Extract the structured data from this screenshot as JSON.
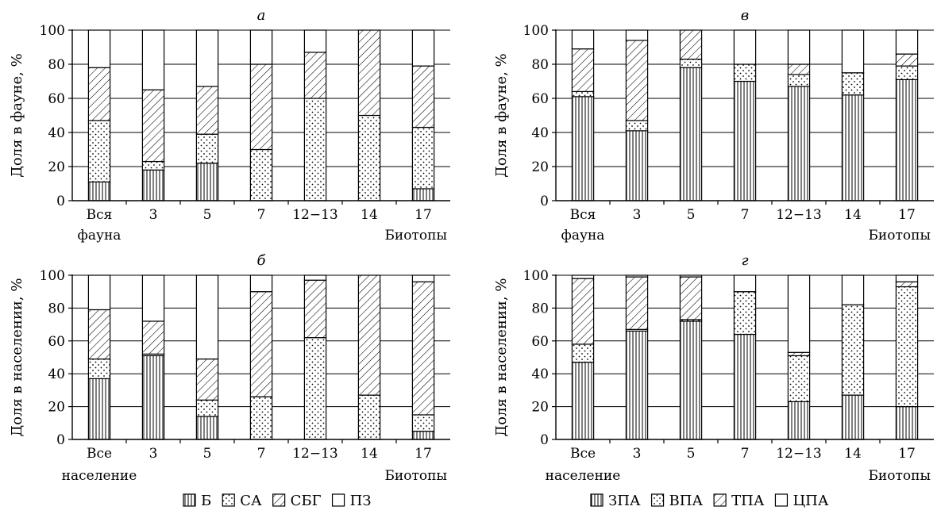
{
  "chart_data": [
    {
      "type": "bar",
      "stacked": true,
      "title": "а",
      "ylabel": "Доля в фауне, %",
      "xlabel": "Биотопы",
      "ylim": [
        0,
        100
      ],
      "yticks": [
        0,
        20,
        40,
        60,
        80,
        100
      ],
      "grid": true,
      "categories": [
        [
          "Вся",
          "фауна"
        ],
        [
          "3"
        ],
        [
          "5"
        ],
        [
          "7"
        ],
        [
          "12−13"
        ],
        [
          "14"
        ],
        [
          "17"
        ]
      ],
      "series": [
        {
          "name": "Б",
          "pattern": "vertical-lines",
          "values": [
            11,
            18,
            22,
            0,
            0,
            0,
            7
          ]
        },
        {
          "name": "СА",
          "pattern": "dots",
          "values": [
            36,
            5,
            17,
            30,
            60,
            50,
            36
          ]
        },
        {
          "name": "СБГ",
          "pattern": "diagonal-lines",
          "values": [
            31,
            42,
            28,
            50,
            27,
            50,
            36
          ]
        },
        {
          "name": "ПЗ",
          "pattern": "blank",
          "values": [
            22,
            35,
            33,
            20,
            13,
            0,
            21
          ]
        }
      ]
    },
    {
      "type": "bar",
      "stacked": true,
      "title": "б",
      "ylabel": "Доля в населении, %",
      "xlabel": "Биотопы",
      "ylim": [
        0,
        100
      ],
      "yticks": [
        0,
        20,
        40,
        60,
        80,
        100
      ],
      "grid": true,
      "categories": [
        [
          "Все",
          "население"
        ],
        [
          "3"
        ],
        [
          "5"
        ],
        [
          "7"
        ],
        [
          "12−13"
        ],
        [
          "14"
        ],
        [
          "17"
        ]
      ],
      "series": [
        {
          "name": "Б",
          "pattern": "vertical-lines",
          "values": [
            37,
            51,
            14,
            0,
            0,
            0,
            5
          ]
        },
        {
          "name": "СА",
          "pattern": "dots",
          "values": [
            12,
            1,
            10,
            26,
            62,
            27,
            10
          ]
        },
        {
          "name": "СБГ",
          "pattern": "diagonal-lines",
          "values": [
            30,
            20,
            25,
            64,
            35,
            73,
            81
          ]
        },
        {
          "name": "ПЗ",
          "pattern": "blank",
          "values": [
            21,
            28,
            51,
            10,
            3,
            0,
            4
          ]
        }
      ]
    },
    {
      "type": "bar",
      "stacked": true,
      "title": "в",
      "ylabel": "Доля в фауне, %",
      "xlabel": "Биотопы",
      "ylim": [
        0,
        100
      ],
      "yticks": [
        0,
        20,
        40,
        60,
        80,
        100
      ],
      "grid": true,
      "categories": [
        [
          "Вся",
          "фауна"
        ],
        [
          "3"
        ],
        [
          "5"
        ],
        [
          "7"
        ],
        [
          "12−13"
        ],
        [
          "14"
        ],
        [
          "17"
        ]
      ],
      "series": [
        {
          "name": "ЗПА",
          "pattern": "vertical-lines",
          "values": [
            61,
            41,
            78,
            70,
            67,
            62,
            71
          ]
        },
        {
          "name": "ВПА",
          "pattern": "dots",
          "values": [
            3,
            6,
            5,
            10,
            7,
            13,
            8
          ]
        },
        {
          "name": "ТПА",
          "pattern": "diagonal-lines",
          "values": [
            25,
            47,
            17,
            0,
            6,
            0,
            7
          ]
        },
        {
          "name": "ЦПА",
          "pattern": "blank",
          "values": [
            11,
            6,
            0,
            20,
            20,
            25,
            14
          ]
        }
      ]
    },
    {
      "type": "bar",
      "stacked": true,
      "title": "г",
      "ylabel": "Доля в населении, %",
      "xlabel": "Биотопы",
      "ylim": [
        0,
        100
      ],
      "yticks": [
        0,
        20,
        40,
        60,
        80,
        100
      ],
      "grid": true,
      "categories": [
        [
          "Все",
          "население"
        ],
        [
          "3"
        ],
        [
          "5"
        ],
        [
          "7"
        ],
        [
          "12−13"
        ],
        [
          "14"
        ],
        [
          "17"
        ]
      ],
      "series": [
        {
          "name": "ЗПА",
          "pattern": "vertical-lines",
          "values": [
            47,
            66,
            72,
            64,
            23,
            27,
            20
          ]
        },
        {
          "name": "ВПА",
          "pattern": "dots",
          "values": [
            11,
            1,
            1,
            26,
            28,
            55,
            73
          ]
        },
        {
          "name": "ТПА",
          "pattern": "diagonal-lines",
          "values": [
            40,
            32,
            26,
            0,
            2,
            0,
            3
          ]
        },
        {
          "name": "ЦПА",
          "pattern": "blank",
          "values": [
            2,
            1,
            1,
            10,
            47,
            18,
            4
          ]
        }
      ]
    }
  ],
  "legends": [
    [
      {
        "name": "Б",
        "pattern": "vertical-lines"
      },
      {
        "name": "СА",
        "pattern": "dots"
      },
      {
        "name": "СБГ",
        "pattern": "diagonal-lines"
      },
      {
        "name": "ПЗ",
        "pattern": "blank"
      }
    ],
    [
      {
        "name": "ЗПА",
        "pattern": "vertical-lines"
      },
      {
        "name": "ВПА",
        "pattern": "dots"
      },
      {
        "name": "ТПА",
        "pattern": "diagonal-lines"
      },
      {
        "name": "ЦПА",
        "pattern": "blank"
      }
    ]
  ]
}
